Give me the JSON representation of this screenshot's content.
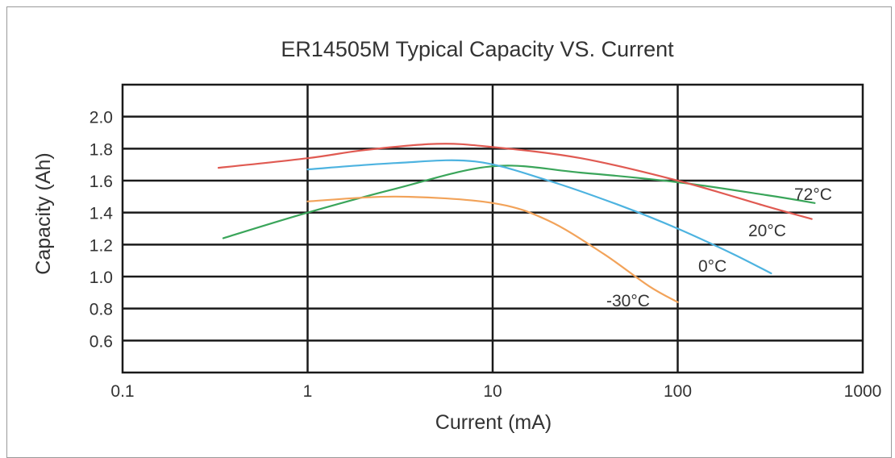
{
  "chart_data": {
    "type": "line",
    "title": "ER14505M Typical Capacity VS. Current",
    "xlabel": "Current (mA)",
    "ylabel": "Capacity (Ah)",
    "x_scale": "log",
    "xlim": [
      0.1,
      1000
    ],
    "ylim": [
      0.4,
      2.2
    ],
    "x_ticks": [
      "0.1",
      "1",
      "10",
      "100",
      "1000"
    ],
    "y_ticks": [
      "0.6",
      "0.8",
      "1.0",
      "1.2",
      "1.4",
      "1.6",
      "1.8",
      "2.0"
    ],
    "grid": true,
    "series": [
      {
        "name": "72°C",
        "color": "#3aa55a",
        "x": [
          0.35,
          1,
          3,
          10,
          30,
          100,
          300,
          550
        ],
        "y": [
          1.24,
          1.4,
          1.55,
          1.69,
          1.65,
          1.59,
          1.51,
          1.46
        ]
      },
      {
        "name": "20°C",
        "color": "#e05a52",
        "x": [
          0.33,
          1,
          2,
          5,
          10,
          30,
          100,
          300,
          530
        ],
        "y": [
          1.68,
          1.74,
          1.79,
          1.83,
          1.81,
          1.74,
          1.6,
          1.44,
          1.36
        ]
      },
      {
        "name": "0°C",
        "color": "#4db3e0",
        "x": [
          1,
          3,
          8,
          20,
          50,
          100,
          200,
          320
        ],
        "y": [
          1.67,
          1.71,
          1.72,
          1.6,
          1.44,
          1.3,
          1.14,
          1.02
        ]
      },
      {
        "name": "-30°C",
        "color": "#f2a35a",
        "x": [
          1,
          3,
          10,
          20,
          40,
          70,
          100
        ],
        "y": [
          1.47,
          1.5,
          1.46,
          1.35,
          1.14,
          0.94,
          0.84
        ]
      }
    ]
  }
}
